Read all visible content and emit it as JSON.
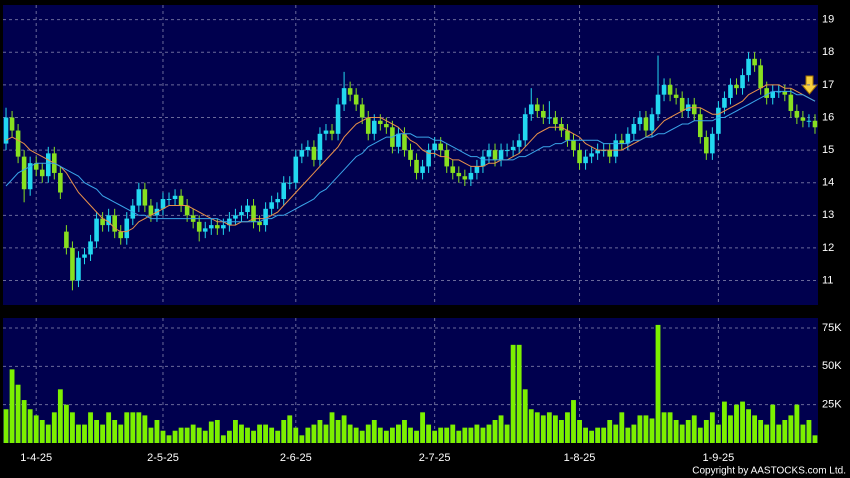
{
  "chart_data": [
    {
      "type": "candlestick",
      "categories": [
        null,
        null,
        null,
        null,
        null,
        "1-4-25",
        null,
        null,
        null,
        null,
        null,
        null,
        null,
        null,
        null,
        null,
        null,
        null,
        null,
        null,
        null,
        null,
        null,
        null,
        null,
        null,
        "2-5-25",
        null,
        null,
        null,
        null,
        null,
        null,
        null,
        null,
        null,
        null,
        null,
        null,
        null,
        null,
        null,
        null,
        null,
        null,
        null,
        null,
        null,
        "2-6-25",
        null,
        null,
        null,
        null,
        null,
        null,
        null,
        null,
        null,
        null,
        null,
        null,
        null,
        null,
        null,
        null,
        null,
        null,
        null,
        null,
        null,
        null,
        "2-7-25",
        null,
        null,
        null,
        null,
        null,
        null,
        null,
        null,
        null,
        null,
        null,
        null,
        null,
        null,
        null,
        null,
        null,
        null,
        null,
        null,
        null,
        null,
        null,
        "1-8-25",
        null,
        null,
        null,
        null,
        null,
        null,
        null,
        null,
        null,
        null,
        null,
        null,
        null,
        null,
        null,
        null,
        null,
        null,
        null,
        null,
        null,
        null,
        "1-9-25",
        null,
        null,
        null,
        null,
        null,
        null,
        null,
        null,
        null,
        null,
        null,
        null,
        null,
        null,
        null,
        null
      ],
      "open": [
        15.2,
        16.0,
        15.6,
        14.8,
        13.8,
        14.6,
        14.4,
        14.2,
        14.9,
        14.3,
        12.5,
        12.0,
        11.0,
        11.7,
        11.8,
        12.2,
        12.9,
        12.7,
        13.0,
        12.5,
        12.3,
        12.9,
        13.3,
        13.8,
        13.3,
        13.0,
        13.2,
        13.5,
        13.5,
        13.6,
        13.3,
        13.0,
        12.8,
        12.5,
        12.6,
        12.7,
        12.6,
        12.7,
        12.9,
        13.0,
        13.1,
        13.3,
        12.8,
        12.7,
        13.2,
        13.4,
        13.5,
        14.0,
        14.0,
        14.8,
        15.0,
        15.1,
        14.7,
        15.5,
        15.6,
        15.5,
        16.4,
        16.9,
        16.7,
        16.4,
        16.0,
        15.5,
        15.9,
        15.8,
        15.7,
        15.1,
        15.5,
        15.0,
        14.7,
        14.3,
        14.5,
        15.0,
        15.2,
        15.0,
        14.5,
        14.3,
        14.2,
        14.1,
        14.3,
        14.5,
        14.8,
        15.0,
        14.7,
        15.0,
        15.0,
        15.1,
        15.3,
        16.1,
        16.4,
        16.2,
        16.0,
        16.0,
        15.8,
        15.6,
        15.3,
        15.0,
        14.6,
        14.8,
        14.9,
        15.0,
        15.0,
        14.8,
        15.3,
        15.2,
        15.5,
        15.8,
        16.0,
        15.6,
        16.1,
        16.7,
        17.0,
        16.7,
        16.6,
        16.2,
        16.4,
        16.1,
        15.4,
        14.9,
        15.5,
        16.3,
        16.6,
        17.0,
        16.9,
        17.3,
        17.8,
        17.6,
        16.9,
        16.6,
        16.8,
        16.8,
        16.7,
        16.2,
        16.0,
        15.9,
        15.9
      ],
      "high": [
        16.3,
        16.2,
        15.8,
        15.0,
        14.8,
        14.8,
        14.6,
        15.1,
        15.1,
        14.5,
        12.7,
        12.2,
        11.9,
        12.0,
        12.4,
        13.1,
        13.1,
        13.2,
        13.2,
        12.7,
        13.1,
        13.5,
        14.0,
        14.0,
        13.5,
        13.4,
        13.7,
        13.7,
        13.8,
        13.8,
        13.5,
        13.2,
        13.0,
        12.8,
        12.9,
        12.9,
        12.9,
        13.1,
        13.2,
        13.3,
        13.5,
        13.5,
        13.0,
        13.4,
        13.6,
        13.7,
        14.2,
        14.2,
        15.0,
        15.2,
        15.3,
        15.3,
        15.7,
        15.8,
        15.8,
        16.6,
        17.4,
        17.1,
        16.9,
        16.6,
        16.2,
        16.1,
        16.1,
        16.0,
        15.9,
        15.7,
        15.7,
        15.2,
        14.9,
        14.7,
        15.2,
        15.4,
        15.4,
        15.2,
        14.7,
        14.5,
        14.4,
        14.5,
        14.7,
        15.0,
        15.2,
        15.2,
        15.2,
        15.2,
        15.3,
        15.5,
        16.3,
        16.9,
        16.6,
        16.4,
        16.5,
        16.2,
        16.0,
        15.8,
        15.5,
        15.2,
        15.0,
        15.1,
        15.2,
        15.2,
        15.2,
        15.5,
        15.5,
        15.7,
        16.0,
        16.2,
        16.2,
        16.3,
        17.9,
        17.2,
        17.2,
        16.9,
        16.8,
        16.6,
        16.6,
        16.3,
        15.6,
        15.7,
        16.5,
        16.8,
        17.2,
        17.2,
        17.5,
        18.0,
        18.0,
        17.8,
        17.1,
        17.0,
        17.0,
        17.0,
        16.9,
        16.4,
        16.2,
        16.1,
        16.1
      ],
      "low": [
        15.0,
        15.4,
        14.6,
        13.4,
        13.6,
        14.2,
        14.0,
        14.0,
        14.1,
        13.5,
        11.8,
        10.7,
        10.8,
        11.5,
        11.6,
        12.0,
        12.5,
        12.5,
        12.3,
        12.1,
        12.1,
        12.7,
        13.1,
        13.1,
        12.8,
        12.8,
        13.0,
        13.3,
        13.3,
        13.1,
        12.8,
        12.6,
        12.2,
        12.3,
        12.4,
        12.4,
        12.4,
        12.5,
        12.7,
        12.8,
        12.9,
        12.6,
        12.5,
        12.5,
        13.0,
        13.2,
        13.3,
        13.8,
        13.8,
        14.6,
        14.8,
        14.5,
        14.5,
        15.3,
        15.3,
        15.3,
        16.2,
        16.5,
        16.2,
        15.8,
        15.3,
        15.3,
        15.6,
        15.5,
        14.9,
        14.9,
        14.8,
        14.5,
        14.1,
        14.1,
        14.3,
        14.8,
        14.8,
        14.3,
        14.1,
        14.0,
        13.9,
        13.9,
        14.1,
        14.3,
        14.6,
        14.5,
        14.5,
        14.8,
        14.8,
        14.9,
        15.1,
        15.9,
        16.0,
        15.8,
        15.8,
        15.6,
        15.4,
        15.1,
        14.8,
        14.4,
        14.4,
        14.6,
        14.7,
        14.8,
        14.6,
        14.6,
        15.0,
        15.0,
        15.3,
        15.6,
        15.4,
        15.4,
        15.9,
        16.5,
        16.5,
        16.4,
        16.0,
        16.0,
        15.9,
        15.2,
        14.7,
        14.7,
        15.3,
        16.1,
        16.4,
        16.7,
        16.7,
        17.1,
        17.4,
        16.7,
        16.4,
        16.4,
        16.6,
        16.5,
        16.0,
        15.8,
        15.7,
        15.7,
        15.5
      ],
      "close": [
        16.0,
        15.6,
        14.8,
        13.8,
        14.6,
        14.4,
        14.2,
        14.9,
        14.3,
        13.7,
        12.0,
        11.0,
        11.7,
        11.8,
        12.2,
        12.9,
        12.7,
        13.0,
        12.5,
        12.3,
        12.9,
        13.3,
        13.8,
        13.3,
        13.0,
        13.2,
        13.5,
        13.5,
        13.6,
        13.3,
        13.0,
        12.8,
        12.5,
        12.6,
        12.7,
        12.6,
        12.7,
        12.9,
        13.0,
        13.1,
        13.3,
        12.8,
        12.7,
        13.2,
        13.4,
        13.5,
        14.0,
        14.0,
        14.8,
        15.0,
        15.1,
        14.7,
        15.5,
        15.6,
        15.5,
        16.4,
        16.9,
        16.7,
        16.4,
        16.0,
        15.5,
        15.9,
        15.8,
        15.7,
        15.1,
        15.5,
        15.0,
        14.7,
        14.3,
        14.5,
        15.0,
        15.2,
        15.0,
        14.5,
        14.3,
        14.2,
        14.1,
        14.3,
        14.5,
        14.8,
        15.0,
        14.7,
        15.0,
        15.0,
        15.1,
        15.3,
        16.1,
        16.4,
        16.2,
        16.0,
        16.0,
        15.8,
        15.6,
        15.3,
        15.0,
        14.6,
        14.8,
        14.9,
        15.0,
        15.0,
        14.8,
        15.3,
        15.2,
        15.5,
        15.8,
        16.0,
        15.6,
        16.1,
        16.7,
        17.0,
        16.7,
        16.6,
        16.2,
        16.4,
        16.1,
        15.4,
        14.9,
        15.5,
        16.3,
        16.6,
        17.0,
        16.9,
        17.3,
        17.8,
        17.6,
        16.9,
        16.6,
        16.8,
        16.8,
        16.7,
        16.2,
        16.0,
        15.9,
        15.9,
        15.7
      ],
      "up_color": "#22d8f0",
      "down_color": "#88e020",
      "series": [
        {
          "color": "#e8904a",
          "values": [
            15.3,
            15.4,
            15.3,
            15.2,
            15.0,
            14.9,
            14.8,
            14.7,
            14.6,
            14.5,
            14.3,
            14.0,
            13.7,
            13.5,
            13.3,
            13.1,
            12.9,
            12.8,
            12.6,
            12.5,
            12.5,
            12.6,
            12.8,
            12.9,
            13.0,
            13.1,
            13.2,
            13.3,
            13.3,
            13.3,
            13.3,
            13.2,
            13.1,
            13.0,
            12.9,
            12.8,
            12.8,
            12.7,
            12.7,
            12.8,
            12.8,
            12.9,
            12.9,
            12.9,
            13.0,
            13.1,
            13.3,
            13.5,
            13.7,
            13.9,
            14.1,
            14.3,
            14.5,
            14.7,
            14.9,
            15.1,
            15.4,
            15.6,
            15.8,
            15.9,
            16.0,
            16.0,
            16.0,
            15.9,
            15.8,
            15.7,
            15.5,
            15.3,
            15.2,
            15.0,
            14.9,
            14.9,
            14.8,
            14.8,
            14.7,
            14.7,
            14.6,
            14.5,
            14.5,
            14.5,
            14.6,
            14.6,
            14.7,
            14.7,
            14.8,
            14.9,
            15.1,
            15.3,
            15.5,
            15.6,
            15.7,
            15.7,
            15.7,
            15.6,
            15.5,
            15.4,
            15.2,
            15.1,
            15.0,
            15.0,
            15.0,
            15.0,
            15.0,
            15.1,
            15.2,
            15.3,
            15.4,
            15.5,
            15.7,
            15.9,
            16.0,
            16.1,
            16.2,
            16.3,
            16.3,
            16.3,
            16.2,
            16.1,
            16.1,
            16.2,
            16.3,
            16.4,
            16.5,
            16.7,
            16.8,
            16.9,
            17.0,
            17.0,
            17.0,
            16.9,
            16.9,
            16.8,
            16.7,
            16.6,
            16.5
          ]
        },
        {
          "color": "#3aa4e8",
          "values": [
            13.9,
            14.1,
            14.3,
            14.4,
            14.5,
            14.6,
            14.6,
            14.6,
            14.6,
            14.5,
            14.4,
            14.3,
            14.2,
            14.0,
            13.9,
            13.8,
            13.6,
            13.5,
            13.4,
            13.3,
            13.2,
            13.1,
            13.0,
            13.0,
            12.9,
            12.9,
            12.9,
            12.9,
            12.9,
            12.9,
            12.9,
            12.9,
            12.9,
            12.9,
            12.9,
            12.9,
            12.8,
            12.8,
            12.8,
            12.8,
            12.8,
            12.8,
            12.8,
            12.9,
            12.9,
            13.0,
            13.0,
            13.1,
            13.2,
            13.3,
            13.4,
            13.5,
            13.7,
            13.8,
            14.0,
            14.2,
            14.4,
            14.6,
            14.8,
            14.9,
            15.1,
            15.2,
            15.3,
            15.4,
            15.4,
            15.5,
            15.5,
            15.5,
            15.4,
            15.4,
            15.4,
            15.3,
            15.3,
            15.2,
            15.1,
            15.0,
            14.9,
            14.8,
            14.8,
            14.7,
            14.7,
            14.7,
            14.7,
            14.7,
            14.7,
            14.8,
            14.8,
            14.9,
            15.0,
            15.1,
            15.1,
            15.2,
            15.2,
            15.3,
            15.3,
            15.3,
            15.3,
            15.3,
            15.3,
            15.2,
            15.2,
            15.2,
            15.2,
            15.2,
            15.3,
            15.3,
            15.4,
            15.4,
            15.5,
            15.5,
            15.6,
            15.7,
            15.8,
            15.8,
            15.9,
            15.9,
            15.9,
            15.9,
            16.0,
            16.0,
            16.1,
            16.2,
            16.3,
            16.4,
            16.5,
            16.6,
            16.7,
            16.8,
            16.8,
            16.8,
            16.8,
            16.7,
            16.7,
            16.6,
            16.5
          ]
        }
      ],
      "ylim": [
        10.25,
        19.45
      ],
      "yticks": [
        11,
        12,
        13,
        14,
        15,
        16,
        17,
        18,
        19
      ],
      "grid": true
    },
    {
      "type": "bar",
      "color": "#7cf000",
      "values": [
        22000,
        48000,
        38000,
        28000,
        22000,
        18000,
        15000,
        12000,
        20000,
        35000,
        25000,
        20000,
        12000,
        12000,
        20000,
        15000,
        12000,
        20000,
        15000,
        12000,
        20000,
        20000,
        20000,
        18000,
        10000,
        15000,
        8000,
        5000,
        8000,
        10000,
        10000,
        12000,
        10000,
        8000,
        14000,
        15000,
        5000,
        8000,
        15000,
        12000,
        10000,
        8000,
        12000,
        12000,
        10000,
        8000,
        15000,
        18000,
        10000,
        5000,
        10000,
        12000,
        15000,
        12000,
        20000,
        15000,
        18000,
        12000,
        10000,
        8000,
        12000,
        15000,
        10000,
        8000,
        10000,
        12000,
        15000,
        10000,
        8000,
        20000,
        12000,
        8000,
        10000,
        10000,
        12000,
        8000,
        10000,
        10000,
        12000,
        10000,
        12000,
        15000,
        18000,
        12000,
        64000,
        64000,
        35000,
        22000,
        20000,
        18000,
        20000,
        18000,
        15000,
        20000,
        28000,
        15000,
        10000,
        8000,
        10000,
        10000,
        15000,
        12000,
        20000,
        10000,
        12000,
        18000,
        18000,
        16000,
        77000,
        20000,
        20000,
        15000,
        12000,
        15000,
        18000,
        10000,
        15000,
        20000,
        12000,
        27000,
        18000,
        25000,
        27000,
        22000,
        18000,
        15000,
        12000,
        25000,
        12000,
        15000,
        18000,
        25000,
        12000,
        15000,
        5000
      ],
      "ylim": [
        0,
        81500
      ],
      "yticks": [
        {
          "value": 25000,
          "label": "25K"
        },
        {
          "value": 50000,
          "label": "50K"
        },
        {
          "value": 75000,
          "label": "75K"
        }
      ],
      "grid": true
    }
  ],
  "copyright": "Copyright by AASTOCKS.com Ltd."
}
